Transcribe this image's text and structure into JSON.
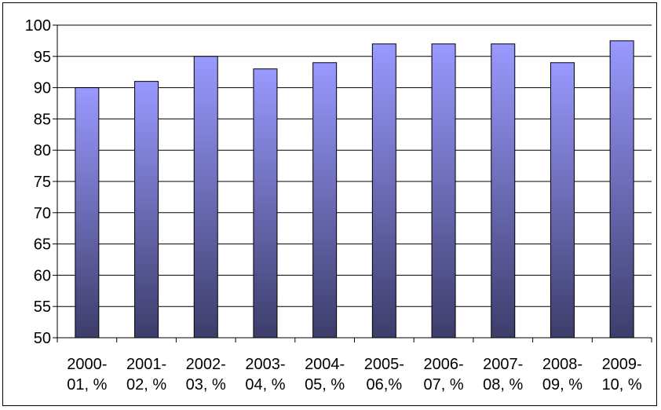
{
  "chart_data": {
    "type": "bar",
    "title": "",
    "xlabel": "",
    "ylabel": "",
    "ylim": [
      50,
      100
    ],
    "ytick_step": 5,
    "yticks": [
      "50",
      "55",
      "60",
      "65",
      "70",
      "75",
      "80",
      "85",
      "90",
      "95",
      "100"
    ],
    "grid": true,
    "legend": "none",
    "categories": [
      [
        "2000-",
        "01, %"
      ],
      [
        "2001-",
        "02, %"
      ],
      [
        "2002-",
        "03, %"
      ],
      [
        "2003-",
        "04, %"
      ],
      [
        "2004-",
        "05, %"
      ],
      [
        "2005-",
        "06,%"
      ],
      [
        "2006-",
        "07, %"
      ],
      [
        "2007-",
        "08, %"
      ],
      [
        "2008-",
        "09, %"
      ],
      [
        "2009-",
        "10, %"
      ]
    ],
    "values": [
      90,
      91,
      95,
      93,
      94,
      97,
      97,
      97,
      94,
      97.5
    ],
    "colors": {
      "bar_top": "#9999ff",
      "bar_bottom": "#3d3d6b",
      "bar_stroke": "#000000",
      "grid": "#000000",
      "axis": "#000000"
    }
  }
}
